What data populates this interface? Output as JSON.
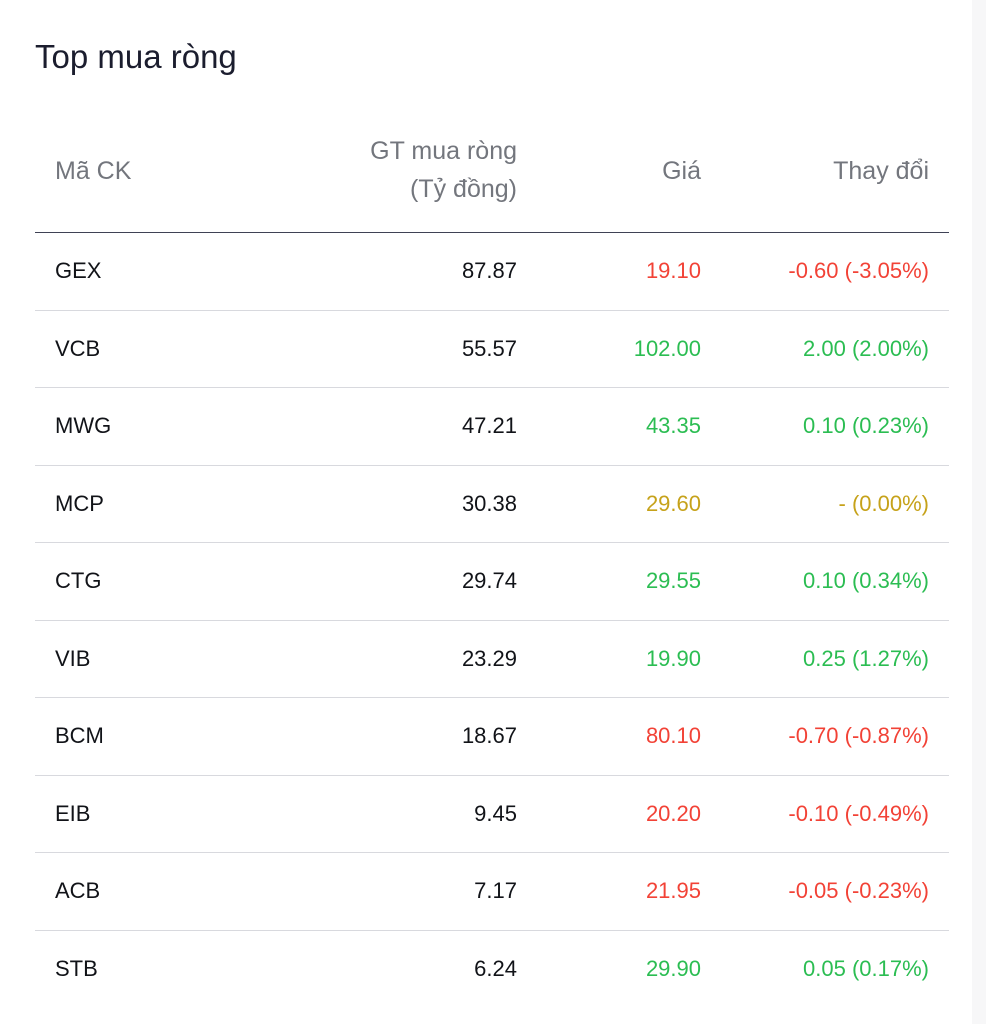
{
  "title": "Top mua ròng",
  "columns": {
    "code": "Mã CK",
    "net_line1": "GT mua ròng",
    "net_line2": "(Tỷ đồng)",
    "price": "Giá",
    "change": "Thay đổi"
  },
  "colors": {
    "up": "#2bbd52",
    "down": "#f24236",
    "reference": "#c6a21a"
  },
  "rows": [
    {
      "code": "GEX",
      "net": "87.87",
      "price": "19.10",
      "change": "-0.60 (-3.05%)",
      "trend": "down"
    },
    {
      "code": "VCB",
      "net": "55.57",
      "price": "102.00",
      "change": "2.00 (2.00%)",
      "trend": "up"
    },
    {
      "code": "MWG",
      "net": "47.21",
      "price": "43.35",
      "change": "0.10 (0.23%)",
      "trend": "up"
    },
    {
      "code": "MCP",
      "net": "30.38",
      "price": "29.60",
      "change": "- (0.00%)",
      "trend": "ref"
    },
    {
      "code": "CTG",
      "net": "29.74",
      "price": "29.55",
      "change": "0.10 (0.34%)",
      "trend": "up"
    },
    {
      "code": "VIB",
      "net": "23.29",
      "price": "19.90",
      "change": "0.25 (1.27%)",
      "trend": "up"
    },
    {
      "code": "BCM",
      "net": "18.67",
      "price": "80.10",
      "change": "-0.70 (-0.87%)",
      "trend": "down"
    },
    {
      "code": "EIB",
      "net": "9.45",
      "price": "20.20",
      "change": "-0.10 (-0.49%)",
      "trend": "down"
    },
    {
      "code": "ACB",
      "net": "7.17",
      "price": "21.95",
      "change": "-0.05 (-0.23%)",
      "trend": "down"
    },
    {
      "code": "STB",
      "net": "6.24",
      "price": "29.90",
      "change": "0.05 (0.17%)",
      "trend": "up"
    }
  ]
}
